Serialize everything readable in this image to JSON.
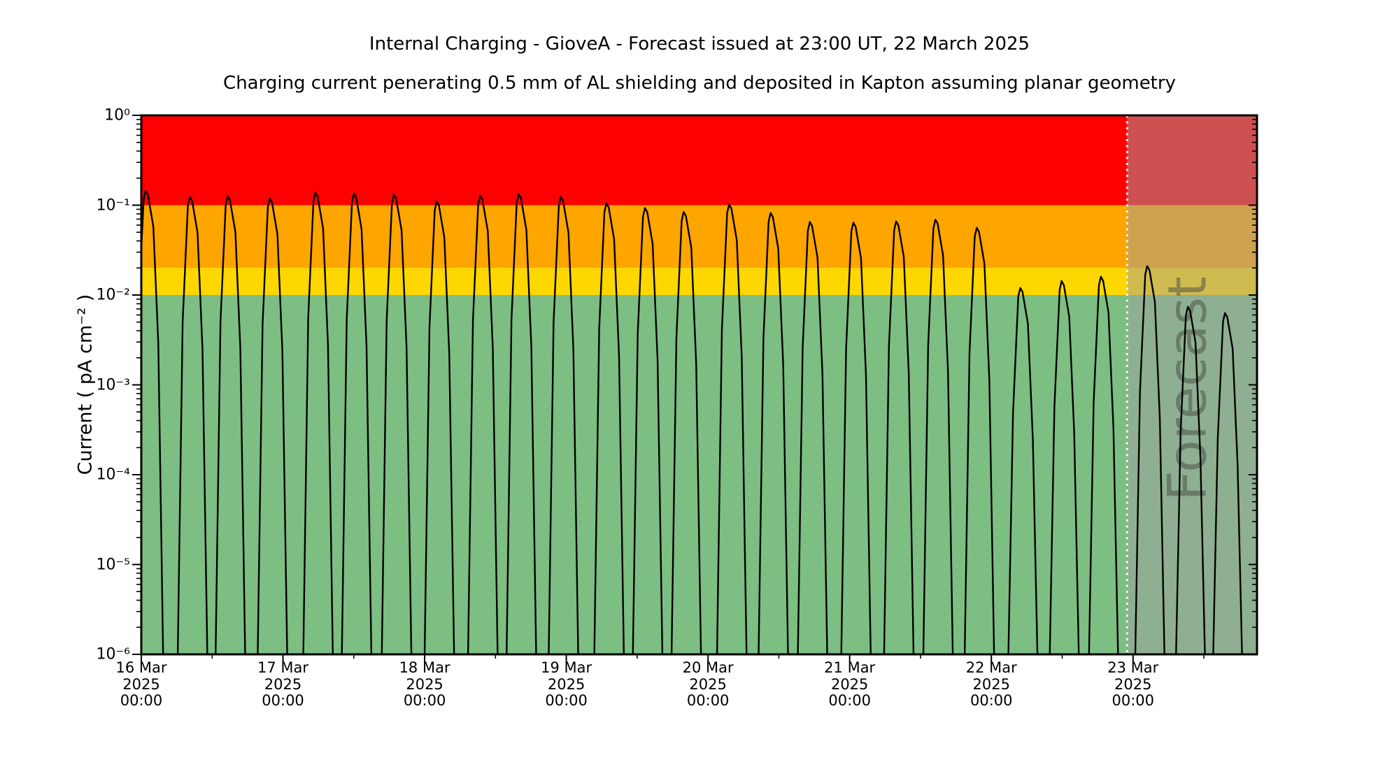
{
  "title": "Internal Charging - GioveA - Forecast issued at 23:00 UT, 22 March 2025",
  "subtitle": "Charging current penerating 0.5 mm of AL shielding and deposited in Kapton assuming planar geometry",
  "y_axis": {
    "label": "Current ( pA cm⁻² )",
    "scale": "log",
    "ticks": [
      "10⁰",
      "10⁻¹",
      "10⁻²",
      "10⁻³",
      "10⁻⁴",
      "10⁻⁵",
      "10⁻⁶"
    ]
  },
  "x_axis": {
    "ticks": [
      {
        "date": "16 Mar",
        "year": "2025",
        "time": "00:00"
      },
      {
        "date": "17 Mar",
        "year": "2025",
        "time": "00:00"
      },
      {
        "date": "18 Mar",
        "year": "2025",
        "time": "00:00"
      },
      {
        "date": "19 Mar",
        "year": "2025",
        "time": "00:00"
      },
      {
        "date": "20 Mar",
        "year": "2025",
        "time": "00:00"
      },
      {
        "date": "21 Mar",
        "year": "2025",
        "time": "00:00"
      },
      {
        "date": "22 Mar",
        "year": "2025",
        "time": "00:00"
      },
      {
        "date": "23 Mar",
        "year": "2025",
        "time": "00:00"
      }
    ]
  },
  "forecast": {
    "label": "Forecast",
    "boundary_days_from_start": 6.9583,
    "overlay_color": "#a0a0a0",
    "overlay_opacity": 0.5,
    "divider_color": "#ffffff"
  },
  "chart_data": {
    "type": "line",
    "title": "Internal Charging - GioveA - Forecast issued at 23:00 UT, 22 March 2025",
    "subtitle": "Charging current penerating 0.5 mm of AL shielding and deposited in Kapton assuming planar geometry",
    "ylabel": "Current ( pA cm⁻² )",
    "yscale": "log",
    "ylim": [
      1e-06,
      1
    ],
    "x_start": "16 Mar 2025 00:00",
    "x_span_days": 7.875,
    "x_tick_interval_days": 1,
    "grid": false,
    "legend": false,
    "bands": [
      {
        "name": "red-alert",
        "color": "#ff0000",
        "from": 0.1,
        "to": 1.0
      },
      {
        "name": "orange-warning",
        "color": "#ffa500",
        "from": 0.02,
        "to": 0.1
      },
      {
        "name": "yellow-caution",
        "color": "#ffd700",
        "from": 0.01,
        "to": 0.02
      },
      {
        "name": "green-nominal",
        "color": "#7dbe82",
        "from": 1e-06,
        "to": 0.01
      }
    ],
    "series": [
      {
        "name": "charging current",
        "color": "#000000",
        "baseline": 2.5e-07,
        "start_value": 0.033,
        "spikes_days_vs_pA_cm2": [
          [
            0.035,
            0.145
          ],
          [
            0.347,
            0.124
          ],
          [
            0.614,
            0.126
          ],
          [
            0.911,
            0.119
          ],
          [
            1.233,
            0.138
          ],
          [
            1.505,
            0.135
          ],
          [
            1.787,
            0.131
          ],
          [
            2.089,
            0.11
          ],
          [
            2.396,
            0.128
          ],
          [
            2.668,
            0.133
          ],
          [
            2.965,
            0.124
          ],
          [
            3.287,
            0.105
          ],
          [
            3.559,
            0.093
          ],
          [
            3.832,
            0.084
          ],
          [
            4.153,
            0.102
          ],
          [
            4.446,
            0.082
          ],
          [
            4.723,
            0.065
          ],
          [
            5.03,
            0.064
          ],
          [
            5.332,
            0.066
          ],
          [
            5.609,
            0.069
          ],
          [
            5.901,
            0.056
          ],
          [
            6.208,
            0.012
          ],
          [
            6.5,
            0.0143
          ],
          [
            6.777,
            0.016
          ],
          [
            7.104,
            0.021
          ],
          [
            7.391,
            0.0074
          ],
          [
            7.653,
            0.0063
          ]
        ]
      }
    ]
  }
}
